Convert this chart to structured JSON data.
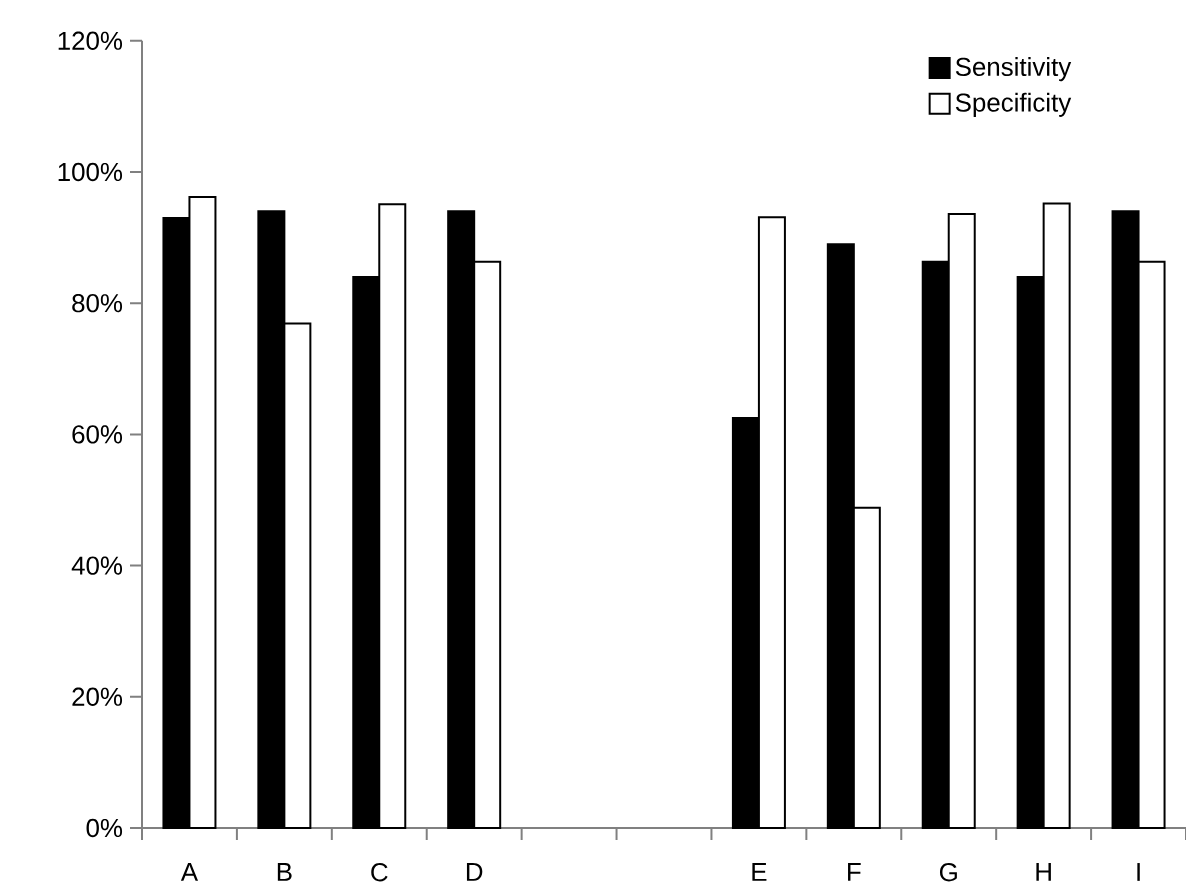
{
  "chart_data": {
    "type": "bar",
    "categories": [
      "A",
      "B",
      "C",
      "D",
      null,
      null,
      "E",
      "F",
      "G",
      "H",
      "I"
    ],
    "series": [
      {
        "name": "Sensitivity",
        "color": "#000000",
        "values": [
          93.0,
          94.0,
          84.0,
          94.0,
          null,
          null,
          62.5,
          89.0,
          86.3,
          84.0,
          94.0
        ]
      },
      {
        "name": "Specificity",
        "color": "#ffffff",
        "values": [
          96.2,
          76.9,
          95.1,
          86.3,
          null,
          null,
          93.1,
          48.8,
          93.6,
          95.2,
          86.3
        ]
      }
    ],
    "ylim": [
      0,
      120
    ],
    "yticks": [
      {
        "value": 0,
        "label": "0%"
      },
      {
        "value": 20,
        "label": "20%"
      },
      {
        "value": 40,
        "label": "40%"
      },
      {
        "value": 60,
        "label": "60%"
      },
      {
        "value": 80,
        "label": "80%"
      },
      {
        "value": 100,
        "label": "100%"
      },
      {
        "value": 120,
        "label": "120%"
      }
    ],
    "legend": "top right",
    "grid": false
  }
}
